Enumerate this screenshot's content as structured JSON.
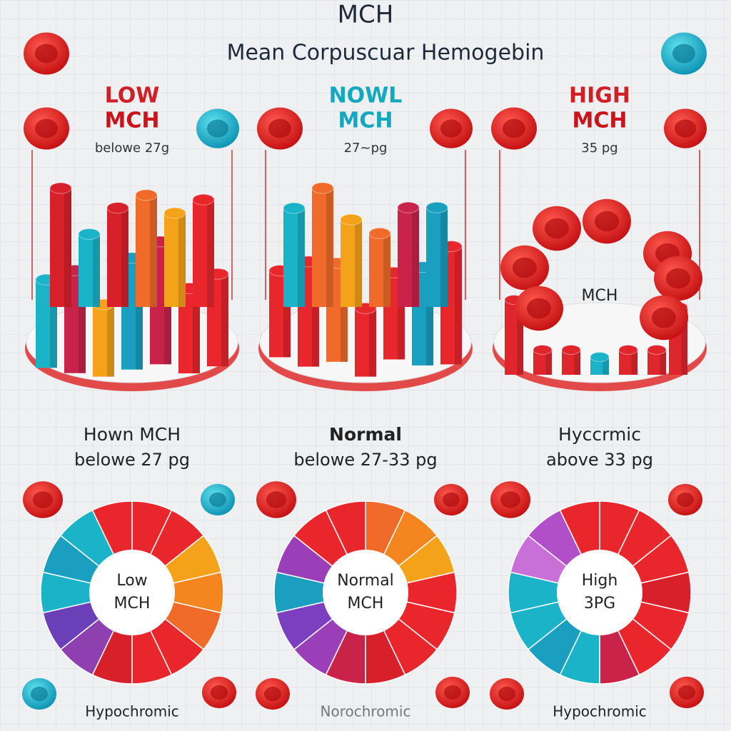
{
  "header": {
    "title": "MCH",
    "subtitle": "Mean Corpuscuar Hemogebin"
  },
  "panels": [
    {
      "heading": [
        "LOW",
        "MCH"
      ],
      "range": "belowe 27g",
      "label": "Hown MCH",
      "detail": "belowe 27 pg",
      "donut_label": [
        "Low",
        "MCH"
      ],
      "footer": "Hypochromic"
    },
    {
      "heading": [
        "NOWL",
        "MCH"
      ],
      "range": "27~pg",
      "label": "Normal",
      "detail": "belowe 27-33 pg",
      "donut_label": [
        "Normal",
        "MCH"
      ],
      "footer": "Norochromic"
    },
    {
      "heading": [
        "HIGH",
        "MCH"
      ],
      "range": "35 pg",
      "plate_label": "MCH",
      "label": "Hyccrmic",
      "detail": "above 33 pg",
      "donut_label": [
        "High",
        "3PG"
      ],
      "footer": "Hypochromic"
    }
  ]
}
